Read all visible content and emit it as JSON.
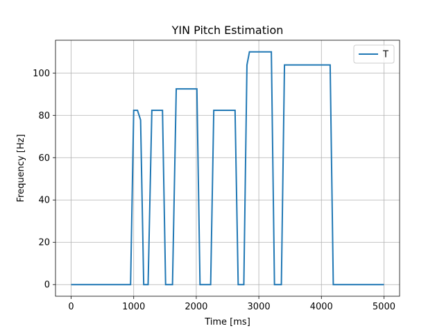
{
  "chart_data": {
    "type": "line",
    "title": "YIN Pitch Estimation",
    "xlabel": "Time [ms]",
    "ylabel": "Frequency [Hz]",
    "xlim": [
      -250,
      5250
    ],
    "ylim": [
      -5.5,
      115.5
    ],
    "xticks": [
      0,
      1000,
      2000,
      3000,
      4000,
      5000
    ],
    "yticks": [
      0,
      20,
      40,
      60,
      80,
      100
    ],
    "grid": true,
    "legend_position": "top-right",
    "colors": {
      "line": "#1f77b4",
      "grid": "#b0b0b0",
      "axes": "#000000"
    },
    "series": [
      {
        "name": "T",
        "x": [
          0,
          950,
          1000,
          1060,
          1110,
          1160,
          1230,
          1290,
          1460,
          1510,
          1620,
          1680,
          2010,
          2060,
          2230,
          2280,
          2620,
          2670,
          2760,
          2810,
          2850,
          3200,
          3250,
          3360,
          3410,
          4140,
          4190,
          5000
        ],
        "y": [
          0,
          0,
          82.4,
          82.4,
          77.8,
          0,
          0,
          82.4,
          82.4,
          0,
          0,
          92.5,
          92.5,
          0,
          0,
          82.4,
          82.4,
          0,
          0,
          103.8,
          110,
          110,
          0,
          0,
          103.8,
          103.8,
          0,
          0
        ]
      }
    ]
  }
}
